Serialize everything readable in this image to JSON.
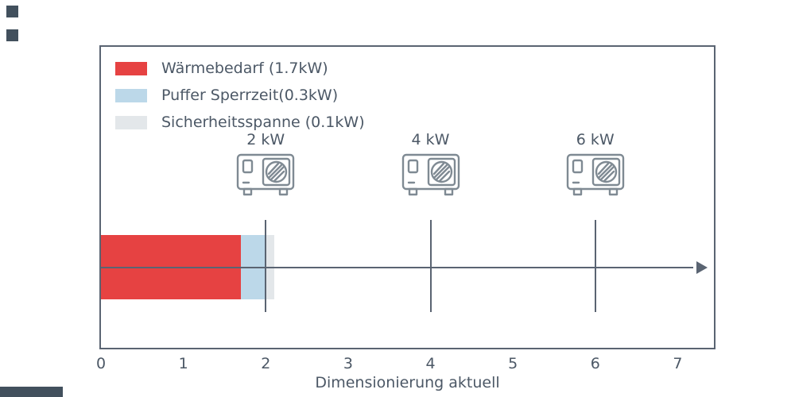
{
  "chart_data": {
    "type": "bar",
    "orientation": "horizontal",
    "title": "",
    "xlabel": "Dimensionierung aktuell",
    "ylabel": "",
    "xlim": [
      0,
      7.44
    ],
    "x_ticks": [
      0,
      1,
      2,
      3,
      4,
      5,
      6,
      7
    ],
    "grid": false,
    "legend_position": "top-left-inside",
    "bar": {
      "segments": [
        {
          "label": "Wärmebedarf (1.7kW)",
          "value": 1.7,
          "start": 0,
          "end": 1.7,
          "color": "#e64242"
        },
        {
          "label": "Puffer Sperrzeit(0.3kW)",
          "value": 0.3,
          "start": 1.7,
          "end": 2.0,
          "color": "#bcd8e9"
        },
        {
          "label": "Sicherheitsspanne (0.1kW)",
          "value": 0.1,
          "start": 2.0,
          "end": 2.1,
          "color": "#e3e7ea"
        }
      ]
    },
    "markers": [
      {
        "label": "2 kW",
        "x": 2,
        "icon": "heat-pump-icon"
      },
      {
        "label": "4 kW",
        "x": 4,
        "icon": "heat-pump-icon"
      },
      {
        "label": "6 kW",
        "x": 6,
        "icon": "heat-pump-icon"
      }
    ],
    "axis_arrow": true,
    "colors": {
      "axis": "#5a6472",
      "text": "#4c5866",
      "icon": "#7f8a93"
    }
  }
}
